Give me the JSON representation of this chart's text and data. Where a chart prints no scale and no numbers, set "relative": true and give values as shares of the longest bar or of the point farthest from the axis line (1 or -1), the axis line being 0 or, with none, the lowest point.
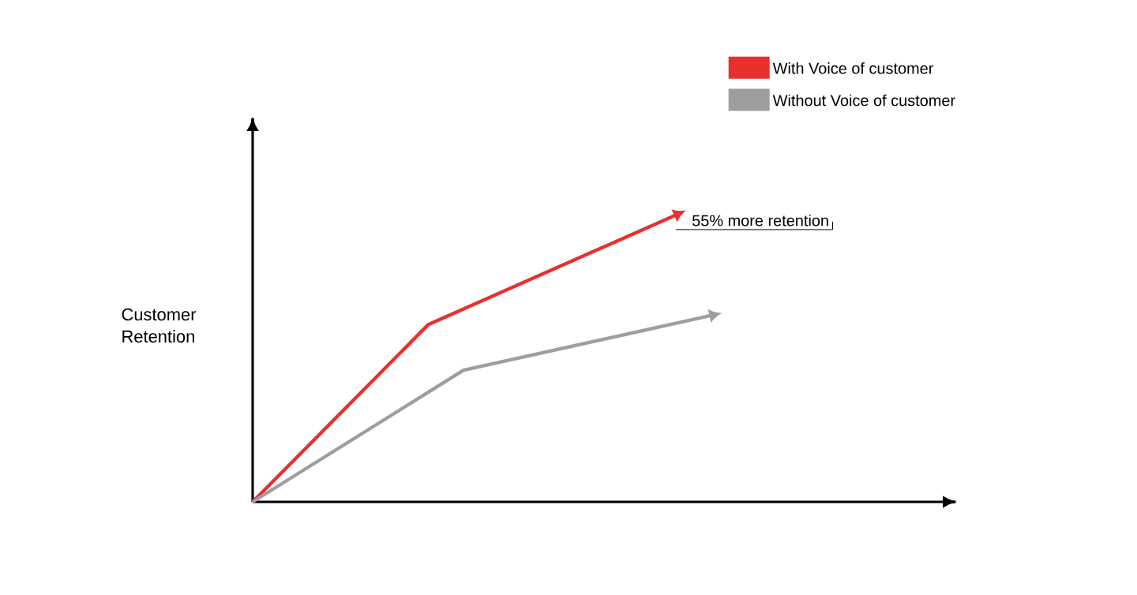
{
  "chart_data": {
    "type": "line",
    "relative": true,
    "ylabel": "Customer Retention",
    "legend": "top right",
    "marker": "none",
    "line_style": "solid",
    "annotations": [
      "55% more retention"
    ],
    "categories": [
      null,
      null,
      null,
      null,
      null,
      null,
      null,
      null,
      null,
      null,
      null,
      null,
      null,
      null
    ],
    "series": [
      {
        "name": "With Voice of customer",
        "color": "#e8302e",
        "values": [
          0,
          null,
          null,
          null,
          null,
          0.62,
          null,
          null,
          null,
          null,
          null,
          null,
          1,
          null
        ]
      },
      {
        "name": "Without Voice of customer",
        "color": "#9e9e9e",
        "values": [
          0,
          null,
          null,
          null,
          null,
          null,
          0.46,
          null,
          null,
          null,
          null,
          null,
          null,
          0.65
        ]
      }
    ]
  }
}
